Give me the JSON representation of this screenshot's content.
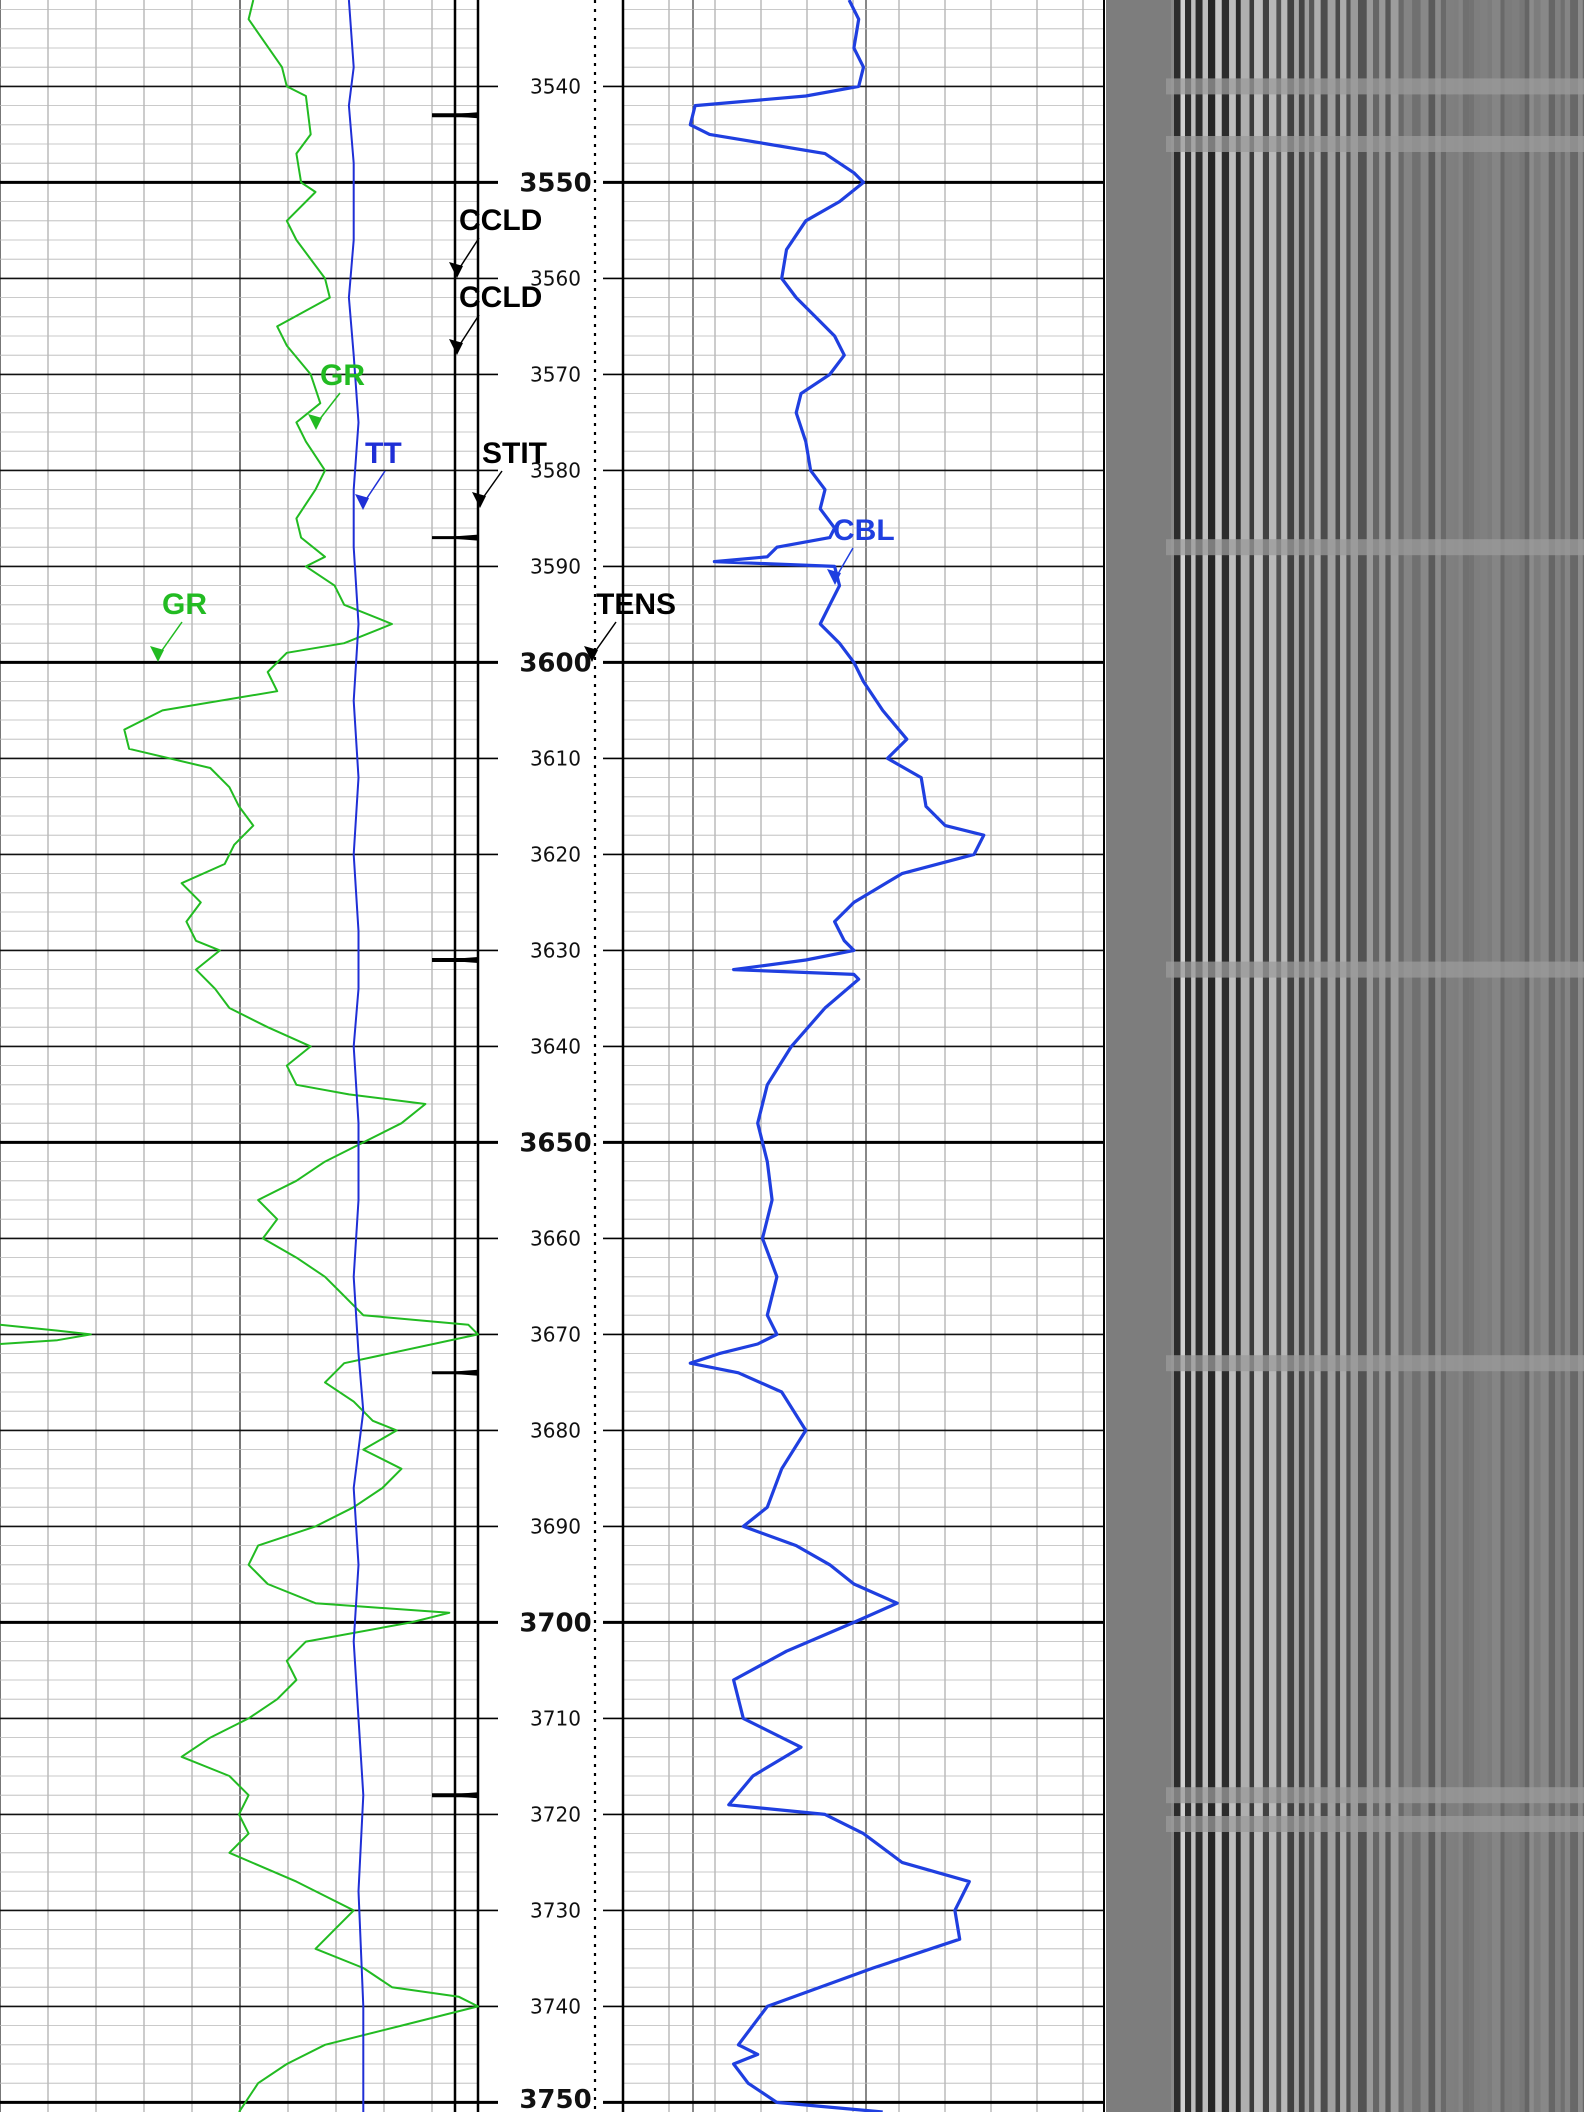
{
  "chart_data": {
    "type": "line",
    "title": "",
    "xlabel": "",
    "ylabel": "",
    "depth_range": [
      3531,
      3751
    ],
    "depth_ticks": {
      "minor": [
        3540,
        3560,
        3570,
        3580,
        3590,
        3610,
        3620,
        3630,
        3640,
        3660,
        3670,
        3680,
        3690,
        3710,
        3720,
        3730,
        3740
      ],
      "major": [
        3550,
        3600,
        3650,
        3700,
        3750
      ]
    },
    "series": [
      {
        "name": "GR",
        "track": 1,
        "color": "#22bb22",
        "x": [
          0.53,
          0.52,
          0.59,
          0.6,
          0.64,
          0.65,
          0.62,
          0.63,
          0.66,
          0.6,
          0.62,
          0.68,
          0.69,
          0.58,
          0.6,
          0.65,
          0.67,
          0.62,
          0.64,
          0.68,
          0.66,
          0.62,
          0.63,
          0.68,
          0.64,
          0.7,
          0.72,
          0.82,
          0.72,
          0.6,
          0.56,
          0.58,
          0.34,
          0.26,
          0.27,
          0.44,
          0.48,
          0.5,
          0.53,
          0.49,
          0.47,
          0.38,
          0.42,
          0.39,
          0.41,
          0.46,
          0.41,
          0.45,
          0.48,
          0.56,
          0.65,
          0.6,
          0.62,
          0.73,
          0.89,
          0.84,
          0.76,
          0.68,
          0.62,
          0.54,
          0.58,
          0.55,
          0.62,
          0.68,
          0.72,
          0.74,
          0.76,
          0.98,
          1.0,
          0.72,
          0.68,
          0.74,
          0.78,
          0.83,
          0.76,
          0.84,
          0.8,
          0.74,
          0.66,
          0.54,
          0.52,
          0.56,
          0.66,
          0.94,
          0.86,
          0.64,
          0.6,
          0.62,
          0.58,
          0.52,
          0.44,
          0.38,
          0.48,
          0.52,
          0.5,
          0.52,
          0.48,
          0.62,
          0.74,
          0.7,
          0.66,
          0.76,
          0.82,
          0.96,
          1.0,
          0.84,
          0.68,
          0.6,
          0.54,
          0.5
        ],
        "y": [
          3531,
          3533,
          3538,
          3540,
          3541,
          3545,
          3547,
          3550,
          3551,
          3554,
          3556,
          3560,
          3562,
          3565,
          3567,
          3570,
          3573,
          3575,
          3577,
          3580,
          3582,
          3585,
          3587,
          3589,
          3590,
          3592,
          3594,
          3596,
          3598,
          3599,
          3601,
          3603,
          3605,
          3607,
          3609,
          3611,
          3613,
          3615,
          3617,
          3619,
          3621,
          3623,
          3625,
          3627,
          3629,
          3630,
          3632,
          3634,
          3636,
          3638,
          3640,
          3642,
          3644,
          3645,
          3646,
          3648,
          3650,
          3652,
          3654,
          3656,
          3658,
          3660,
          3662,
          3664,
          3666,
          3667,
          3668,
          3669,
          3670,
          3673,
          3675,
          3677,
          3679,
          3680,
          3682,
          3684,
          3686,
          3688,
          3690,
          3692,
          3694,
          3696,
          3698,
          3699,
          3700,
          3702,
          3704,
          3706,
          3708,
          3710,
          3712,
          3714,
          3716,
          3718,
          3720,
          3722,
          3724,
          3727,
          3730,
          3732,
          3734,
          3736,
          3738,
          3739,
          3740,
          3742,
          3744,
          3746,
          3748,
          3751
        ]
      },
      {
        "name": "GR",
        "track": 1,
        "color": "#22bb22",
        "x": [
          0.0,
          0.12,
          0.19,
          0.12,
          0.0
        ],
        "y": [
          3669,
          3669.6,
          3670,
          3670.6,
          3671
        ]
      },
      {
        "name": "TT",
        "track": 1,
        "color": "#1f2fd6",
        "x": [
          0.73,
          0.74,
          0.73,
          0.74,
          0.74,
          0.73,
          0.74,
          0.75,
          0.74,
          0.74,
          0.75,
          0.74,
          0.75,
          0.74,
          0.75,
          0.75,
          0.74,
          0.75,
          0.75,
          0.74,
          0.75,
          0.76,
          0.74,
          0.75,
          0.74,
          0.75,
          0.76,
          0.75,
          0.76,
          0.76
        ],
        "y": [
          3531,
          3538,
          3542,
          3548,
          3556,
          3562,
          3568,
          3575,
          3582,
          3588,
          3596,
          3604,
          3612,
          3620,
          3628,
          3634,
          3640,
          3648,
          3656,
          3664,
          3672,
          3678,
          3686,
          3694,
          3702,
          3710,
          3718,
          3728,
          3740,
          3751
        ]
      },
      {
        "name": "CBL",
        "track": 2,
        "color": "#1f3fe0",
        "x": [
          0.47,
          0.49,
          0.48,
          0.5,
          0.49,
          0.38,
          0.15,
          0.14,
          0.18,
          0.3,
          0.42,
          0.48,
          0.5,
          0.45,
          0.38,
          0.34,
          0.33,
          0.36,
          0.4,
          0.44,
          0.46,
          0.43,
          0.37,
          0.36,
          0.38,
          0.39,
          0.42,
          0.41,
          0.44,
          0.43,
          0.32,
          0.31,
          0.3,
          0.19,
          0.44,
          0.45,
          0.43,
          0.41,
          0.45,
          0.48,
          0.5,
          0.54,
          0.59,
          0.55,
          0.62,
          0.63,
          0.67,
          0.75,
          0.73,
          0.58,
          0.48,
          0.44,
          0.46,
          0.48,
          0.38,
          0.23,
          0.48,
          0.49,
          0.42,
          0.35,
          0.3,
          0.28,
          0.3,
          0.31,
          0.29,
          0.32,
          0.3,
          0.32,
          0.28,
          0.2,
          0.14,
          0.24,
          0.33,
          0.38,
          0.33,
          0.3,
          0.25,
          0.36,
          0.43,
          0.48,
          0.57,
          0.48,
          0.34,
          0.23,
          0.25,
          0.37,
          0.27,
          0.22,
          0.42,
          0.5,
          0.58,
          0.72,
          0.69,
          0.7,
          0.52,
          0.3,
          0.24,
          0.28,
          0.23,
          0.26,
          0.32,
          0.54
        ],
        "y": [
          3531,
          3533,
          3536,
          3538,
          3540,
          3541,
          3542,
          3544,
          3545,
          3546,
          3547,
          3549,
          3550,
          3552,
          3554,
          3557,
          3560,
          3562,
          3564,
          3566,
          3568,
          3570,
          3572,
          3574,
          3577,
          3580,
          3582,
          3584,
          3586,
          3587,
          3588,
          3588.5,
          3589,
          3589.5,
          3590,
          3592,
          3594,
          3596,
          3598,
          3600,
          3602,
          3605,
          3608,
          3610,
          3612,
          3615,
          3617,
          3618,
          3620,
          3622,
          3625,
          3627,
          3629,
          3630,
          3631,
          3632,
          3632.5,
          3633,
          3636,
          3640,
          3644,
          3648,
          3652,
          3656,
          3660,
          3664,
          3668,
          3670,
          3671,
          3672,
          3673,
          3674,
          3676,
          3680,
          3684,
          3688,
          3690,
          3692,
          3694,
          3696,
          3698,
          3700,
          3703,
          3706,
          3710,
          3713,
          3716,
          3719,
          3720,
          3722,
          3725,
          3727,
          3730,
          3733,
          3736,
          3740,
          3744,
          3745,
          3746,
          3748,
          3750,
          3751
        ]
      },
      {
        "name": "TENS",
        "track": 1,
        "color": "#000000",
        "x": [
          0.5,
          0.5
        ],
        "y": [
          3531,
          3751
        ]
      }
    ],
    "annotations": [
      {
        "text": "CCLD",
        "color": "#000000",
        "depth": 3554
      },
      {
        "text": "CCLD",
        "color": "#000000",
        "depth": 3562
      },
      {
        "text": "GR",
        "color": "#22bb22",
        "depth": 3570
      },
      {
        "text": "TT",
        "color": "#1f2fd6",
        "depth": 3578
      },
      {
        "text": "STIT",
        "color": "#000000",
        "depth": 3578
      },
      {
        "text": "CBL",
        "color": "#1f3fe0",
        "depth": 3586
      },
      {
        "text": "GR",
        "color": "#22bb22",
        "depth": 3594
      },
      {
        "text": "TENS",
        "color": "#000000",
        "depth": 3594
      }
    ],
    "grid": true,
    "vdl_image": true
  }
}
